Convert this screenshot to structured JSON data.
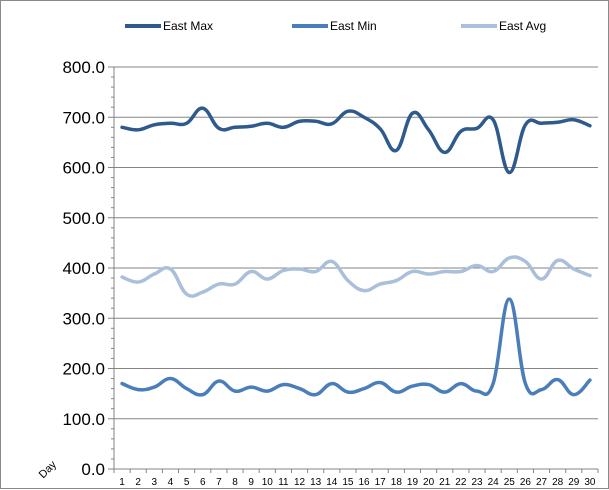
{
  "chart_data": {
    "type": "line",
    "title": "",
    "xlabel": "Day",
    "ylabel": "",
    "ylim": [
      0,
      800
    ],
    "y_ticks": [
      "0.0",
      "100.0",
      "200.0",
      "300.0",
      "400.0",
      "500.0",
      "600.0",
      "700.0",
      "800.0"
    ],
    "categories": [
      "1",
      "2",
      "3",
      "4",
      "5",
      "6",
      "7",
      "8",
      "9",
      "10",
      "11",
      "12",
      "13",
      "14",
      "15",
      "16",
      "17",
      "18",
      "19",
      "20",
      "21",
      "22",
      "23",
      "24",
      "25",
      "26",
      "27",
      "28",
      "29",
      "30"
    ],
    "grid": "horizontal",
    "legend_position": "top",
    "smoothed": true,
    "series": [
      {
        "name": "East Max",
        "color": "#2F5A8E",
        "values": [
          680,
          675,
          685,
          688,
          688,
          718,
          678,
          680,
          682,
          688,
          680,
          692,
          692,
          687,
          712,
          700,
          677,
          634,
          708,
          675,
          630,
          672,
          678,
          695,
          590,
          685,
          688,
          690,
          695,
          683
        ]
      },
      {
        "name": "East Min",
        "color": "#4A7EBB",
        "values": [
          170,
          158,
          163,
          180,
          160,
          148,
          175,
          155,
          163,
          155,
          168,
          160,
          148,
          170,
          153,
          160,
          172,
          153,
          165,
          168,
          153,
          170,
          155,
          170,
          338,
          170,
          158,
          178,
          148,
          177
        ]
      },
      {
        "name": "East Avg",
        "color": "#A9BFDA",
        "values": [
          382,
          372,
          388,
          398,
          348,
          352,
          368,
          368,
          393,
          378,
          395,
          398,
          393,
          413,
          375,
          355,
          368,
          375,
          393,
          388,
          393,
          393,
          405,
          393,
          420,
          413,
          378,
          415,
          398,
          385
        ]
      }
    ]
  }
}
